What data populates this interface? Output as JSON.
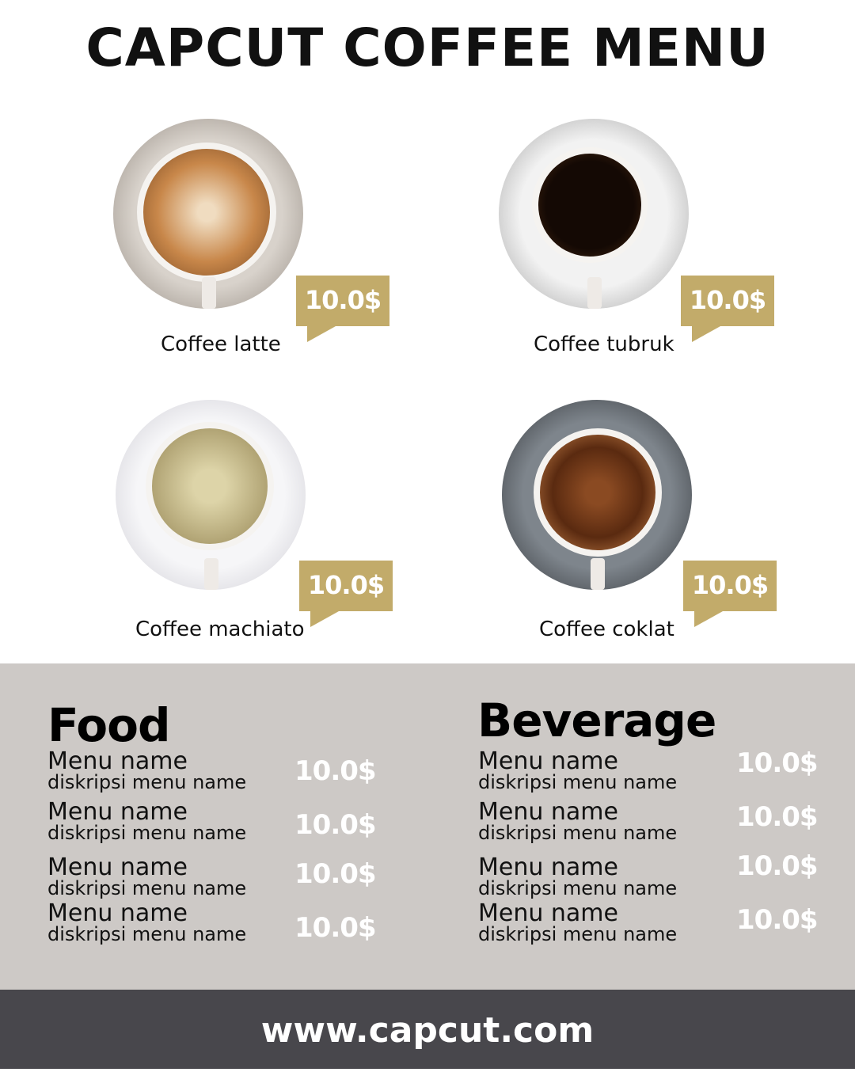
{
  "title": "CAPCUT COFFEE MENU",
  "colors": {
    "gold": "#c2ab6a",
    "band": "#cdc9c6",
    "footer": "#48474c",
    "price_text": "#ffffff"
  },
  "coffees": [
    {
      "name": "Coffee latte",
      "price": "10.0$"
    },
    {
      "name": "Coffee tubruk",
      "price": "10.0$"
    },
    {
      "name": "Coffee machiato",
      "price": "10.0$"
    },
    {
      "name": "Coffee coklat",
      "price": "10.0$"
    }
  ],
  "food": {
    "title": "Food",
    "items": [
      {
        "name": "Menu name",
        "desc": "diskripsi menu name",
        "price": "10.0$"
      },
      {
        "name": "Menu name",
        "desc": "diskripsi menu name",
        "price": "10.0$"
      },
      {
        "name": "Menu name",
        "desc": "diskripsi menu name",
        "price": "10.0$"
      },
      {
        "name": "Menu name",
        "desc": "diskripsi menu name",
        "price": "10.0$"
      }
    ]
  },
  "beverage": {
    "title": "Beverage",
    "items": [
      {
        "name": "Menu name",
        "desc": "diskripsi menu name",
        "price": "10.0$"
      },
      {
        "name": "Menu name",
        "desc": "diskripsi menu name",
        "price": "10.0$"
      },
      {
        "name": "Menu name",
        "desc": "diskripsi menu name",
        "price": "10.0$"
      },
      {
        "name": "Menu name",
        "desc": "diskripsi menu name",
        "price": "10.0$"
      }
    ]
  },
  "footer": {
    "url": "www.capcut.com"
  }
}
